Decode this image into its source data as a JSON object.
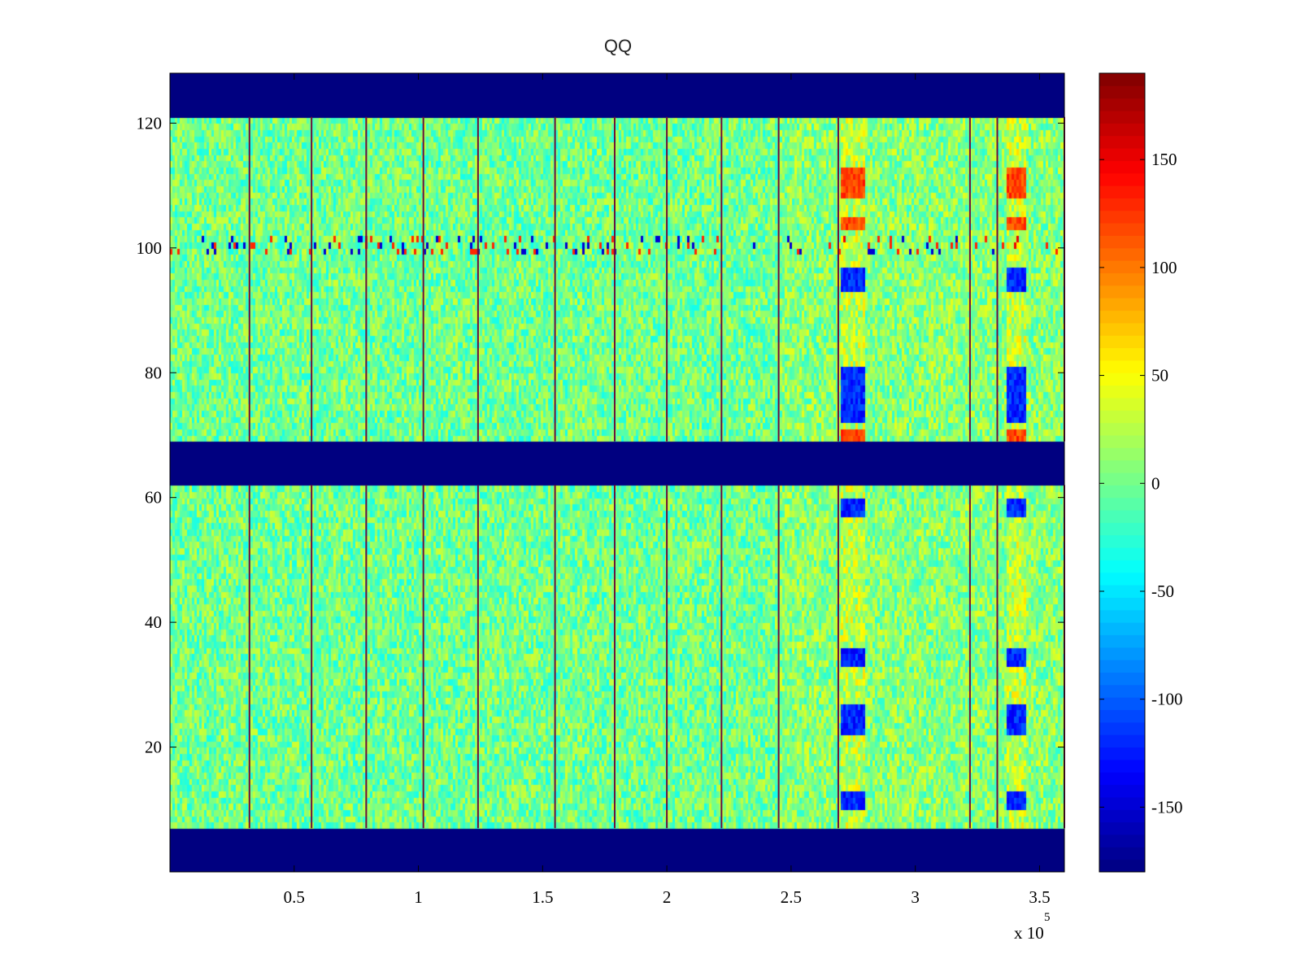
{
  "chart_data": {
    "type": "heatmap",
    "title": "QQ",
    "xlabel": "",
    "ylabel": "",
    "x_range": [
      0,
      3.6
    ],
    "x_exponent_label": "x 10",
    "x_exponent_power": "5",
    "x_ticks": [
      0.5,
      1,
      1.5,
      2,
      2.5,
      3,
      3.5
    ],
    "x_tick_labels": [
      "0.5",
      "1",
      "1.5",
      "2",
      "2.5",
      "3",
      "3.5"
    ],
    "y_range": [
      0,
      128
    ],
    "y_ticks": [
      20,
      40,
      60,
      80,
      100,
      120
    ],
    "y_tick_labels": [
      "20",
      "40",
      "60",
      "80",
      "100",
      "120"
    ],
    "colorbar": {
      "range": [
        -180,
        190
      ],
      "ticks": [
        150,
        100,
        50,
        0,
        -50,
        -100,
        -150
      ],
      "tick_labels": [
        "150",
        "100",
        "50",
        "0",
        "-50",
        "-100",
        "-150"
      ],
      "colormap": "jet"
    },
    "empty_rows": [
      [
        0,
        7
      ],
      [
        62,
        69
      ],
      [
        121,
        128
      ]
    ],
    "vertical_boundaries": [
      0.32,
      0.57,
      0.79,
      1.02,
      1.24,
      1.55,
      1.79,
      2.0,
      2.22,
      2.45,
      2.69,
      3.22,
      3.33,
      3.6
    ],
    "anomaly_columns": [
      {
        "x_start": 2.7,
        "x_end": 2.8,
        "description_rows": "strong +/- bands"
      },
      {
        "x_start": 3.36,
        "x_end": 3.44,
        "description_rows": "strong +/- bands"
      }
    ],
    "noisy_row": 100,
    "background_value": 0
  }
}
